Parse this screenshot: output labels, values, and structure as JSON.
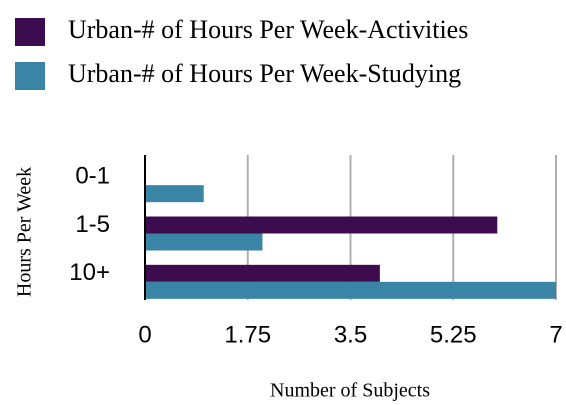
{
  "chart_data": {
    "type": "hbar",
    "categories": [
      "0-1",
      "1-5",
      "10+"
    ],
    "series": [
      {
        "name": "Urban-# of Hours Per Week-Activities",
        "color": "#3d0c4e",
        "values": [
          0,
          6,
          4
        ]
      },
      {
        "name": "Urban-# of Hours Per Week-Studying",
        "color": "#3a85a5",
        "values": [
          1,
          2,
          7
        ]
      }
    ],
    "xlim": [
      0,
      7
    ],
    "xticks": [
      0,
      1.75,
      3.5,
      5.25,
      7
    ],
    "xlabel": "Number of Subjects",
    "ylabel": "Hours Per Week",
    "grid": true,
    "legend": "top"
  }
}
